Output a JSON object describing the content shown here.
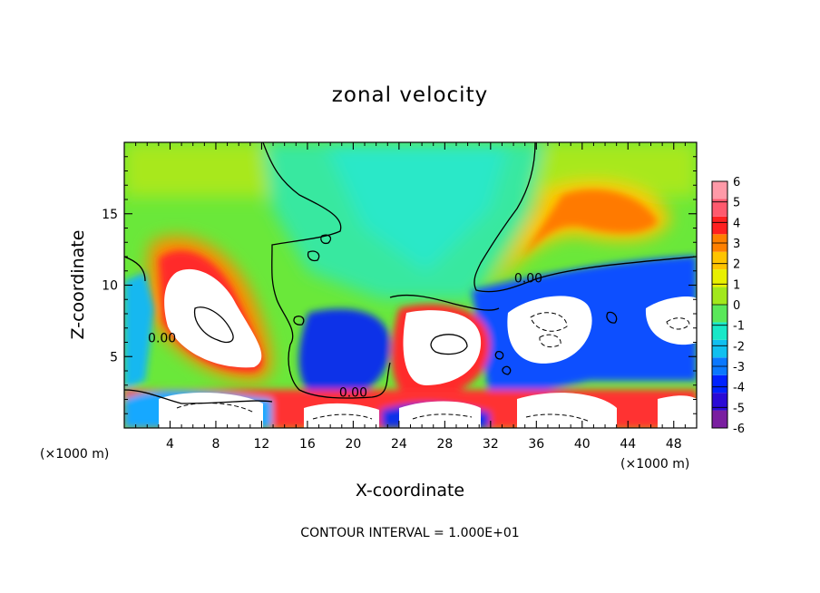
{
  "chart_data": {
    "type": "heatmap",
    "title": "zonal velocity",
    "xlabel": "X-coordinate",
    "ylabel": "Z-coordinate",
    "x_unit_note": "(×1000 m)",
    "z_unit_note": "(×1000 m)",
    "xlim": [
      0,
      50
    ],
    "ylim": [
      0,
      20
    ],
    "x_ticks": [
      4,
      8,
      12,
      16,
      20,
      24,
      28,
      32,
      36,
      40,
      44,
      48
    ],
    "y_ticks": [
      5,
      10,
      15
    ],
    "colorbar": {
      "min": -6,
      "max": 6,
      "ticks": [
        6,
        5,
        4,
        3,
        2,
        1,
        0,
        -1,
        -2,
        -3,
        -4,
        -5,
        -6
      ],
      "colors": [
        "#7a1fa0",
        "#2a0ad6",
        "#0022ff",
        "#0a78ff",
        "#10c0f0",
        "#18e8c8",
        "#5ae85a",
        "#a2e81c",
        "#e8f000",
        "#ffc400",
        "#ff8000",
        "#ff2020",
        "#ff5a6e",
        "#ff9aa8"
      ]
    },
    "contour_labels": [
      {
        "text": "0.00",
        "x": 3.3,
        "z": 6.0
      },
      {
        "text": "0.00",
        "x": 20.0,
        "z": 2.2
      },
      {
        "text": "0.00",
        "x": 35.3,
        "z": 10.2
      }
    ],
    "contour_interval_text": "CONTOUR INTERVAL = 1.000E+01",
    "regions": [
      {
        "feature": "upper background",
        "x": [
          0,
          50
        ],
        "z": [
          8,
          20
        ],
        "value": 0.5
      },
      {
        "feature": "upper central weak westward",
        "x": [
          18,
          34
        ],
        "z": [
          12,
          20
        ],
        "value": -1.5
      },
      {
        "feature": "left jet core",
        "x": [
          3,
          11
        ],
        "z": [
          4,
          12
        ],
        "value": 6
      },
      {
        "feature": "right upper jet",
        "x": [
          38,
          48
        ],
        "z": [
          13,
          17
        ],
        "value": 3.5
      },
      {
        "feature": "blue layer",
        "x": [
          30,
          50
        ],
        "z": [
          6,
          10
        ],
        "value": -4.5
      },
      {
        "feature": "blue cell",
        "x": [
          16,
          22
        ],
        "z": [
          3,
          8
        ],
        "value": -5
      },
      {
        "feature": "red cell",
        "x": [
          24,
          31
        ],
        "z": [
          3,
          8
        ],
        "value": 6
      },
      {
        "feature": "white cell",
        "x": [
          33,
          38
        ],
        "z": [
          4,
          9
        ],
        "value": -6
      },
      {
        "feature": "white cell",
        "x": [
          45,
          50
        ],
        "z": [
          6,
          9
        ],
        "value": -6
      },
      {
        "feature": "lower band cells",
        "x": [
          0,
          50
        ],
        "z": [
          0,
          3
        ],
        "value": 6
      }
    ]
  }
}
